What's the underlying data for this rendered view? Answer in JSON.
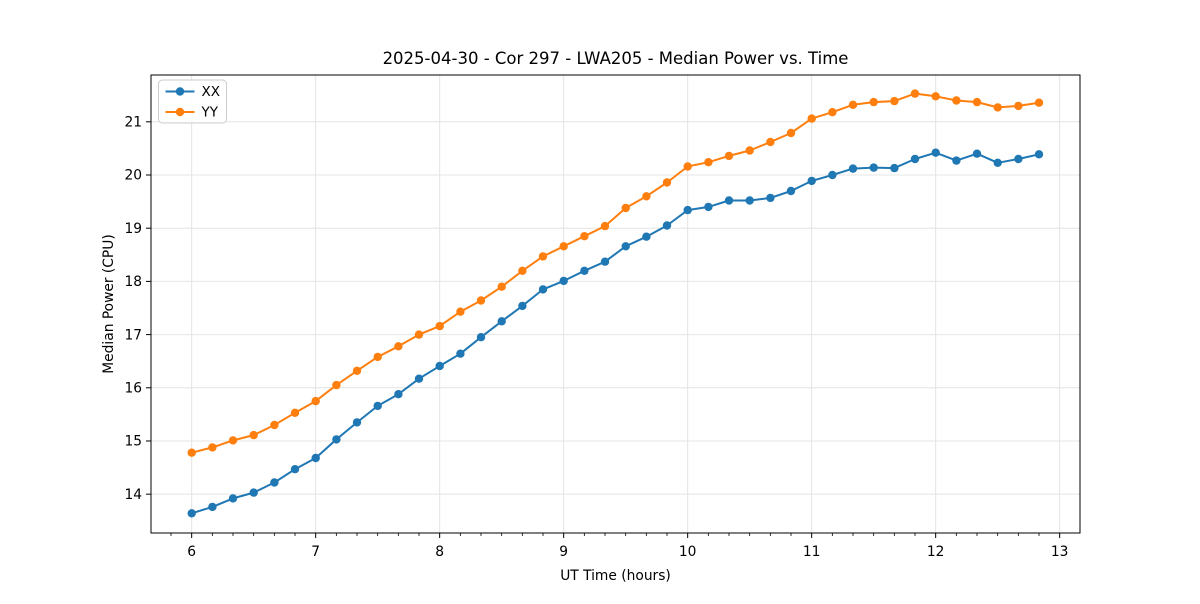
{
  "chart_data": {
    "type": "line",
    "title": "2025-04-30 - Cor 297 - LWA205 - Median Power vs. Time",
    "xlabel": "UT Time (hours)",
    "ylabel": "Median Power (CPU)",
    "xlim": [
      5.672,
      13.164
    ],
    "ylim": [
      13.27,
      21.88
    ],
    "x_major_ticks": [
      6,
      7,
      8,
      9,
      10,
      11,
      12,
      13
    ],
    "x_minor_step": 0.1666667,
    "y_major_ticks": [
      14,
      15,
      16,
      17,
      18,
      19,
      20,
      21
    ],
    "grid": true,
    "grid_color": "#e4e4e4",
    "spine_color": "#000000",
    "background_color": "#ffffff",
    "legend_position": "upper-left",
    "marker": "circle",
    "x": [
      6.0,
      6.167,
      6.333,
      6.5,
      6.667,
      6.833,
      7.0,
      7.167,
      7.333,
      7.5,
      7.667,
      7.833,
      8.0,
      8.167,
      8.333,
      8.5,
      8.667,
      8.833,
      9.0,
      9.167,
      9.333,
      9.5,
      9.667,
      9.833,
      10.0,
      10.167,
      10.333,
      10.5,
      10.667,
      10.833,
      11.0,
      11.167,
      11.333,
      11.5,
      11.667,
      11.833,
      12.0,
      12.167,
      12.333,
      12.5,
      12.667,
      12.833
    ],
    "series": [
      {
        "name": "XX",
        "color": "#1f77b4",
        "values": [
          13.64,
          13.76,
          13.92,
          14.03,
          14.22,
          14.47,
          14.68,
          15.03,
          15.35,
          15.66,
          15.88,
          16.17,
          16.41,
          16.64,
          16.95,
          17.25,
          17.54,
          17.85,
          18.01,
          18.2,
          18.37,
          18.66,
          18.84,
          19.05,
          19.34,
          19.4,
          19.52,
          19.52,
          19.57,
          19.7,
          19.89,
          20.0,
          20.12,
          20.14,
          20.13,
          20.3,
          20.42,
          20.27,
          20.4,
          20.23,
          20.3,
          20.39
        ]
      },
      {
        "name": "YY",
        "color": "#ff7f0e",
        "values": [
          14.78,
          14.88,
          15.01,
          15.11,
          15.3,
          15.53,
          15.75,
          16.05,
          16.32,
          16.58,
          16.78,
          17.0,
          17.16,
          17.43,
          17.64,
          17.9,
          18.2,
          18.47,
          18.66,
          18.85,
          19.04,
          19.38,
          19.6,
          19.86,
          20.16,
          20.24,
          20.36,
          20.46,
          20.62,
          20.79,
          21.06,
          21.18,
          21.32,
          21.37,
          21.39,
          21.53,
          21.48,
          21.4,
          21.37,
          21.27,
          21.3,
          21.36
        ]
      }
    ]
  }
}
